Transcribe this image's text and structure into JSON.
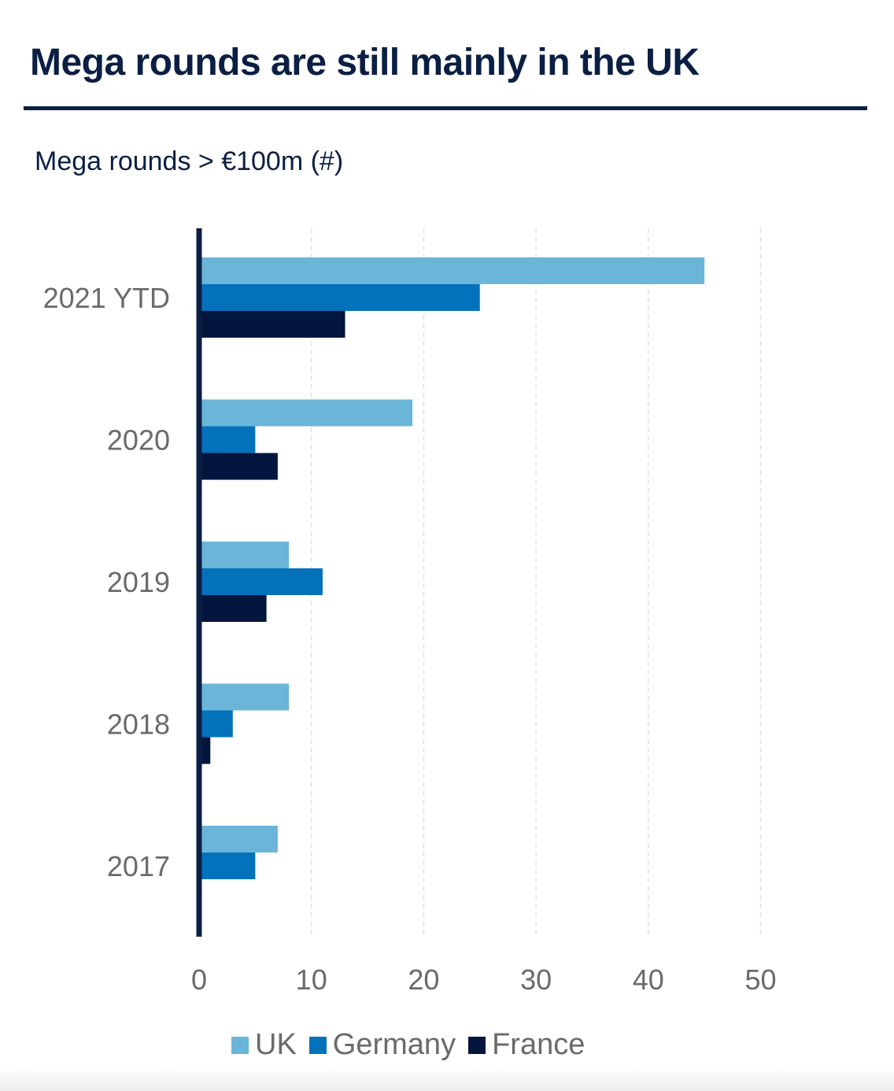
{
  "chart_data": {
    "type": "bar",
    "orientation": "horizontal",
    "title": "Mega rounds are still mainly in the UK",
    "subtitle": "Mega rounds > €100m  (#)",
    "categories": [
      "2021 YTD",
      "2020",
      "2019",
      "2018",
      "2017"
    ],
    "series": [
      {
        "name": "UK",
        "color": "#6bb5d8",
        "values": [
          45,
          19,
          8,
          8,
          7
        ]
      },
      {
        "name": "Germany",
        "color": "#0472bb",
        "values": [
          25,
          5,
          11,
          3,
          5
        ]
      },
      {
        "name": "France",
        "color": "#04163d",
        "values": [
          13,
          7,
          6,
          1,
          0
        ]
      }
    ],
    "x_ticks": [
      "0",
      "10",
      "20",
      "30",
      "40",
      "50"
    ],
    "xlim": [
      0,
      50
    ],
    "xlabel": "",
    "ylabel": "",
    "grid": true,
    "legend_position": "bottom"
  },
  "colors": {
    "heading": "#0b1f44",
    "axis": "#0b1f44",
    "grid": "#e2e2e2",
    "tick_text": "#6a6a6a"
  }
}
